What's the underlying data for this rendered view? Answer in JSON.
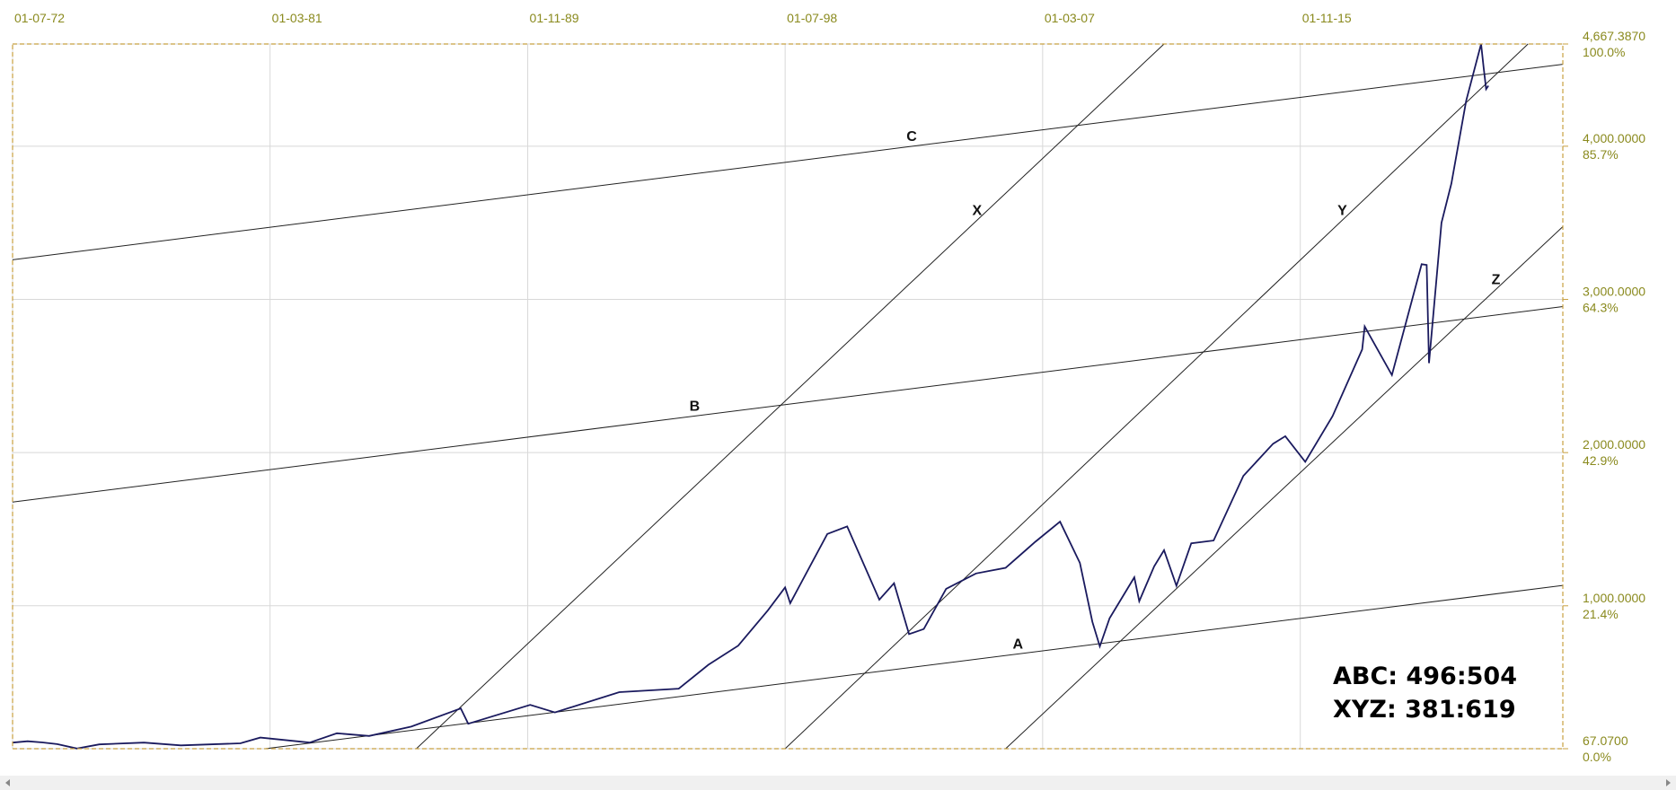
{
  "chart_data": {
    "type": "line",
    "xlim": [
      "1972-07-01",
      "2024-09-01"
    ],
    "xticks": [
      {
        "value": "1972-07-01",
        "label": "01-07-72"
      },
      {
        "value": "1981-03-01",
        "label": "01-03-81"
      },
      {
        "value": "1989-11-01",
        "label": "01-11-89"
      },
      {
        "value": "1998-07-01",
        "label": "01-07-98"
      },
      {
        "value": "2007-03-01",
        "label": "01-03-07"
      },
      {
        "value": "2015-11-01",
        "label": "01-11-15"
      }
    ],
    "ylim": [
      67.07,
      4667.387
    ],
    "yticks": [
      {
        "value": 67.07,
        "label": "67.0700"
      },
      {
        "value": 1000,
        "label": "1,000.0000"
      },
      {
        "value": 2000,
        "label": "2,000.0000"
      },
      {
        "value": 3000,
        "label": "3,000.0000"
      },
      {
        "value": 4000,
        "label": "4,000.0000"
      },
      {
        "value": 4667.387,
        "label": "4,667.3870"
      }
    ],
    "ytick_percent_labels": [
      "0.0%",
      "21.4%",
      "42.9%",
      "64.3%",
      "85.7%",
      "100.0%"
    ],
    "grid": true,
    "series": [
      {
        "color": "#1a1a5e",
        "x": [
          "1972-07-01",
          "1973-01-01",
          "1973-07-01",
          "1974-01-01",
          "1974-09-01",
          "1975-06-01",
          "1976-12-01",
          "1978-03-01",
          "1980-03-01",
          "1980-11-01",
          "1982-07-01",
          "1983-06-01",
          "1984-07-01",
          "1985-12-01",
          "1987-08-01",
          "1987-11-01",
          "1989-12-01",
          "1990-10-01",
          "1992-12-01",
          "1994-12-01",
          "1995-12-01",
          "1996-12-01",
          "1997-12-01",
          "1998-07-01",
          "1998-09-01",
          "1999-12-01",
          "2000-08-01",
          "2001-09-01",
          "2002-03-01",
          "2002-09-01",
          "2003-03-01",
          "2003-12-01",
          "2004-12-01",
          "2005-12-01",
          "2006-12-01",
          "2007-10-01",
          "2008-06-01",
          "2008-11-01",
          "2009-02-01",
          "2009-06-01",
          "2010-04-01",
          "2010-06-01",
          "2010-12-01",
          "2011-04-01",
          "2011-09-01",
          "2012-03-01",
          "2012-12-01",
          "2013-12-01",
          "2014-12-01",
          "2015-05-01",
          "2016-01-01",
          "2016-12-01",
          "2017-12-01",
          "2018-01-01",
          "2018-12-01",
          "2019-12-01",
          "2020-02-01",
          "2020-03-01",
          "2020-08-01",
          "2020-12-01",
          "2021-06-01",
          "2021-12-01",
          "2022-01-01",
          "2022-02-01",
          "2022-03-01"
        ],
        "values": [
          107,
          116,
          108,
          97,
          68,
          95,
          107,
          89,
          102,
          140,
          107,
          168,
          150,
          211,
          330,
          230,
          353,
          304,
          436,
          459,
          615,
          740,
          970,
          1120,
          1017,
          1469,
          1518,
          1040,
          1147,
          815,
          848,
          1111,
          1211,
          1248,
          1418,
          1549,
          1280,
          896,
          735,
          919,
          1186,
          1030,
          1257,
          1363,
          1131,
          1408,
          1426,
          1848,
          2058,
          2107,
          1940,
          2238,
          2673,
          2823,
          2506,
          3230,
          3225,
          2584,
          3500,
          3756,
          4297,
          4667.387,
          4515,
          4373,
          4395
        ]
      }
    ],
    "trendlines": [
      {
        "name": "A",
        "x": [
          "1981-01-01",
          "2024-09-01"
        ],
        "values": [
          67.07,
          1133
        ]
      },
      {
        "name": "B",
        "x": [
          "1972-07-01",
          "2024-09-01"
        ],
        "values": [
          1677,
          2953
        ]
      },
      {
        "name": "C",
        "x": [
          "1972-07-01",
          "2024-09-01"
        ],
        "values": [
          3259,
          4535
        ]
      },
      {
        "name": "X",
        "x": [
          "1986-02-01",
          "2011-04-01"
        ],
        "values": [
          67.07,
          4667.387
        ]
      },
      {
        "name": "Y",
        "x": [
          "1998-07-01",
          "2023-07-01"
        ],
        "values": [
          67.07,
          4667.387
        ]
      },
      {
        "name": "Z",
        "x": [
          "2005-12-01",
          "2024-09-01"
        ],
        "values": [
          67.07,
          3475
        ]
      }
    ],
    "annotations": [
      "ABC: 496:504",
      "XYZ: 381:619"
    ]
  }
}
